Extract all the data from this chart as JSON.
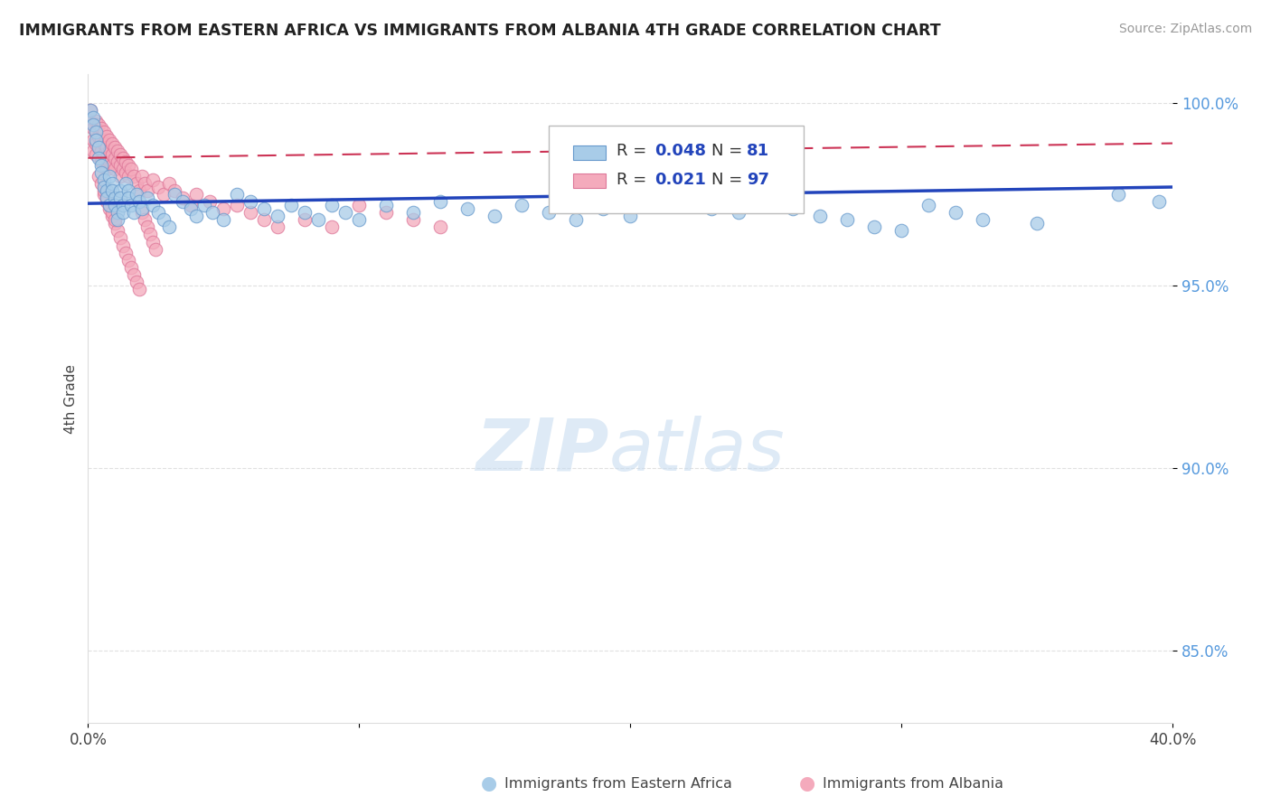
{
  "title": "IMMIGRANTS FROM EASTERN AFRICA VS IMMIGRANTS FROM ALBANIA 4TH GRADE CORRELATION CHART",
  "source": "Source: ZipAtlas.com",
  "ylabel": "4th Grade",
  "xlim": [
    0.0,
    0.4
  ],
  "ylim": [
    0.83,
    1.008
  ],
  "blue_color": "#A8CCE8",
  "blue_edge": "#6699CC",
  "pink_color": "#F4AABC",
  "pink_edge": "#DD7799",
  "trendline_blue": "#2244BB",
  "trendline_pink": "#CC3355",
  "blue_trend": [
    0.9725,
    0.977
  ],
  "pink_trend": [
    0.985,
    0.989
  ],
  "blue_scatter_x": [
    0.001,
    0.002,
    0.002,
    0.003,
    0.003,
    0.004,
    0.004,
    0.005,
    0.005,
    0.006,
    0.006,
    0.007,
    0.007,
    0.008,
    0.008,
    0.009,
    0.009,
    0.01,
    0.01,
    0.011,
    0.011,
    0.012,
    0.012,
    0.013,
    0.013,
    0.014,
    0.015,
    0.015,
    0.016,
    0.017,
    0.018,
    0.019,
    0.02,
    0.022,
    0.024,
    0.026,
    0.028,
    0.03,
    0.032,
    0.035,
    0.038,
    0.04,
    0.043,
    0.046,
    0.05,
    0.055,
    0.06,
    0.065,
    0.07,
    0.075,
    0.08,
    0.085,
    0.09,
    0.095,
    0.1,
    0.11,
    0.12,
    0.13,
    0.14,
    0.15,
    0.16,
    0.17,
    0.18,
    0.19,
    0.2,
    0.21,
    0.22,
    0.23,
    0.24,
    0.25,
    0.26,
    0.27,
    0.28,
    0.29,
    0.3,
    0.31,
    0.32,
    0.33,
    0.35,
    0.38,
    0.395
  ],
  "blue_scatter_y": [
    0.998,
    0.996,
    0.994,
    0.992,
    0.99,
    0.988,
    0.985,
    0.983,
    0.981,
    0.979,
    0.977,
    0.976,
    0.974,
    0.972,
    0.98,
    0.978,
    0.976,
    0.974,
    0.972,
    0.97,
    0.968,
    0.976,
    0.974,
    0.972,
    0.97,
    0.978,
    0.976,
    0.974,
    0.972,
    0.97,
    0.975,
    0.973,
    0.971,
    0.974,
    0.972,
    0.97,
    0.968,
    0.966,
    0.975,
    0.973,
    0.971,
    0.969,
    0.972,
    0.97,
    0.968,
    0.975,
    0.973,
    0.971,
    0.969,
    0.972,
    0.97,
    0.968,
    0.972,
    0.97,
    0.968,
    0.972,
    0.97,
    0.973,
    0.971,
    0.969,
    0.972,
    0.97,
    0.968,
    0.971,
    0.969,
    0.975,
    0.973,
    0.971,
    0.97,
    0.973,
    0.971,
    0.969,
    0.968,
    0.966,
    0.965,
    0.972,
    0.97,
    0.968,
    0.967,
    0.975,
    0.973
  ],
  "pink_scatter_x": [
    0.001,
    0.001,
    0.002,
    0.002,
    0.002,
    0.003,
    0.003,
    0.003,
    0.003,
    0.004,
    0.004,
    0.004,
    0.005,
    0.005,
    0.005,
    0.005,
    0.006,
    0.006,
    0.006,
    0.007,
    0.007,
    0.007,
    0.007,
    0.008,
    0.008,
    0.008,
    0.009,
    0.009,
    0.009,
    0.01,
    0.01,
    0.01,
    0.011,
    0.011,
    0.012,
    0.012,
    0.012,
    0.013,
    0.013,
    0.014,
    0.014,
    0.015,
    0.015,
    0.016,
    0.017,
    0.018,
    0.019,
    0.02,
    0.021,
    0.022,
    0.024,
    0.026,
    0.028,
    0.03,
    0.032,
    0.035,
    0.038,
    0.04,
    0.045,
    0.05,
    0.055,
    0.06,
    0.065,
    0.07,
    0.08,
    0.09,
    0.1,
    0.11,
    0.12,
    0.13,
    0.006,
    0.007,
    0.008,
    0.009,
    0.01,
    0.011,
    0.012,
    0.013,
    0.014,
    0.015,
    0.016,
    0.017,
    0.018,
    0.019,
    0.02,
    0.021,
    0.022,
    0.023,
    0.024,
    0.025,
    0.004,
    0.005,
    0.006,
    0.007,
    0.008,
    0.009,
    0.01
  ],
  "pink_scatter_y": [
    0.998,
    0.995,
    0.993,
    0.99,
    0.987,
    0.995,
    0.992,
    0.989,
    0.986,
    0.994,
    0.991,
    0.988,
    0.993,
    0.99,
    0.987,
    0.984,
    0.992,
    0.989,
    0.986,
    0.991,
    0.988,
    0.985,
    0.982,
    0.99,
    0.987,
    0.984,
    0.989,
    0.986,
    0.983,
    0.988,
    0.985,
    0.982,
    0.987,
    0.984,
    0.986,
    0.983,
    0.98,
    0.985,
    0.982,
    0.984,
    0.981,
    0.983,
    0.98,
    0.982,
    0.98,
    0.978,
    0.976,
    0.98,
    0.978,
    0.976,
    0.979,
    0.977,
    0.975,
    0.978,
    0.976,
    0.974,
    0.972,
    0.975,
    0.973,
    0.971,
    0.972,
    0.97,
    0.968,
    0.966,
    0.968,
    0.966,
    0.972,
    0.97,
    0.968,
    0.966,
    0.975,
    0.973,
    0.971,
    0.969,
    0.967,
    0.965,
    0.963,
    0.961,
    0.959,
    0.957,
    0.955,
    0.953,
    0.951,
    0.949,
    0.97,
    0.968,
    0.966,
    0.964,
    0.962,
    0.96,
    0.98,
    0.978,
    0.976,
    0.974,
    0.972,
    0.97,
    0.968
  ]
}
